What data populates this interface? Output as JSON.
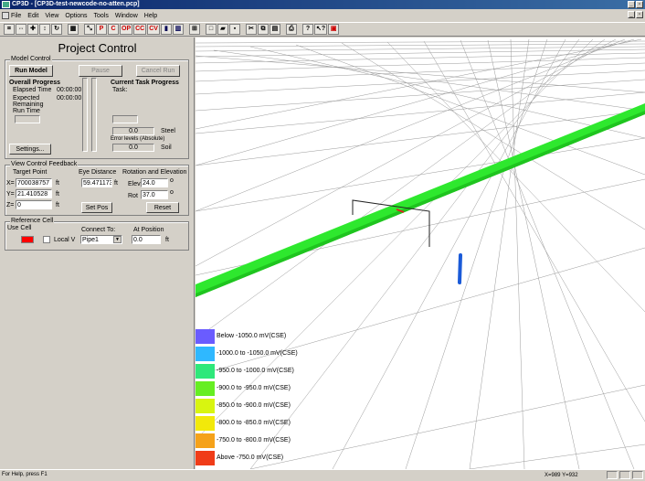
{
  "window": {
    "title": "CP3D - [CP3D-test-newcode-no-atten.pcp]"
  },
  "menu": [
    "File",
    "Edit",
    "View",
    "Options",
    "Tools",
    "Window",
    "Help"
  ],
  "toolbar": {
    "buttons": [
      "P",
      "C",
      "OP",
      "CC",
      "CV"
    ]
  },
  "panel": {
    "title": "Project Control",
    "model_control": {
      "label": "Model Control",
      "run_model": "Run Model",
      "pause": "Pause",
      "cancel_run": "Cancel Run",
      "overall_progress": "Overall Progress",
      "elapsed_label": "Elapsed Time",
      "elapsed_value": "00:00:00",
      "expected_label": "Expected Remaining Run Time",
      "expected_value": "00:00:00",
      "current_task": "Current Task Progress",
      "task_label": "Task:",
      "steel_value": "0.0",
      "steel_label": "Steel",
      "error_levels": "Error levels (Absolute)",
      "soil_value": "0.0",
      "soil_label": "Soil",
      "settings": "Settings..."
    },
    "view_feedback": {
      "label": "View Control Feedback",
      "target_point": "Target Point",
      "eye_distance": "Eye Distance",
      "rotation": "Rotation and Elevation",
      "x_label": "X=",
      "x_value": "700038757",
      "y_label": "Y=",
      "y_value": "21.410528",
      "z_label": "Z=",
      "z_value": "0",
      "unit_ft": "ft",
      "eye_value": "59.471173",
      "elev_label": "Elev",
      "elev_value": "24.0",
      "rot_label": "Rot",
      "rot_value": "37.0",
      "deg": "o",
      "set_pos": "Set Pos",
      "reset": "Reset"
    },
    "reference_cell": {
      "label": "Reference Cell",
      "use_cell": "Use Cell",
      "connect_to": "Connect To:",
      "at_position": "At Position",
      "local_v": "Local V",
      "connect_value": "Pipe1",
      "position_value": "0.0",
      "unit_ft": "ft",
      "cell_color": "#ff0000"
    }
  },
  "legend": [
    {
      "label": "Below -1050.0 mV(CSE)",
      "color": "#6a5cff"
    },
    {
      "label": "-1000.0 to -1050.0 mV(CSE)",
      "color": "#2fb8ff"
    },
    {
      "label": "-950.0 to -1000.0 mV(CSE)",
      "color": "#2ee87a"
    },
    {
      "label": "-900.0 to -950.0 mV(CSE)",
      "color": "#66ee22"
    },
    {
      "label": "-850.0 to -900.0 mV(CSE)",
      "color": "#d8f510"
    },
    {
      "label": "-800.0 to -850.0 mV(CSE)",
      "color": "#f2e90a"
    },
    {
      "label": "-750.0 to -800.0 mV(CSE)",
      "color": "#f5a21a"
    },
    {
      "label": "Above -750.0 mV(CSE)",
      "color": "#f03c18"
    }
  ],
  "statusbar": {
    "help": "For Help, press F1",
    "coords": "X=989   Y=932"
  }
}
